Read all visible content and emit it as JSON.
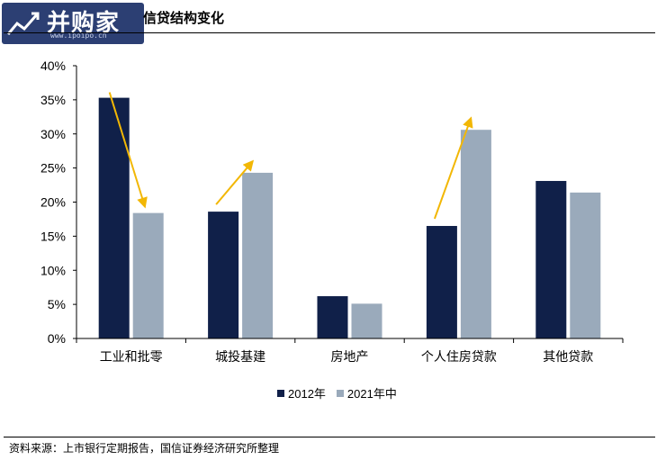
{
  "logo": {
    "text": "并购家",
    "url": "www.ipoipo.cn"
  },
  "title": "信贷结构变化",
  "source": "资料来源：上市银行定期报告，国信证券经济研究所整理",
  "colors": {
    "series_2012": "#102049",
    "series_2021": "#9aaabb",
    "arrow": "#f2b705"
  },
  "chart_data": {
    "type": "bar",
    "categories": [
      "工业和批零",
      "城投基建",
      "房地产",
      "个人住房贷款",
      "其他贷款"
    ],
    "series": [
      {
        "name": "2012年",
        "values": [
          35.3,
          18.6,
          6.2,
          16.5,
          23.1
        ]
      },
      {
        "name": "2021年中",
        "values": [
          18.4,
          24.3,
          5.1,
          30.6,
          21.4
        ]
      }
    ],
    "ylim": [
      0,
      40
    ],
    "yticks": [
      "0%",
      "5%",
      "10%",
      "15%",
      "20%",
      "25%",
      "30%",
      "35%",
      "40%"
    ],
    "grid": false,
    "legend": "bottom",
    "annotations": [
      {
        "type": "arrow",
        "category": "工业和批零",
        "from": 35.3,
        "to": 18.4,
        "direction": "down"
      },
      {
        "type": "arrow",
        "category": "城投基建",
        "from": 18.6,
        "to": 24.3,
        "direction": "up"
      },
      {
        "type": "arrow",
        "category": "个人住房贷款",
        "from": 16.5,
        "to": 30.6,
        "direction": "up"
      }
    ]
  }
}
